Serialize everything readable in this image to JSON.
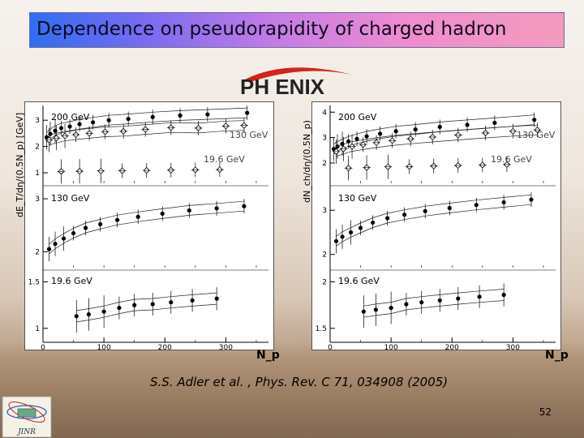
{
  "title": "Dependence on pseudorapidity of charged hadron",
  "logo_text": "PH ENIX",
  "citation": "S.S. Adler et al. , Phys. Rev. C 71, 034908 (2005)",
  "page_number": "52",
  "institute_logo_text": "JINR",
  "colors": {
    "title_gradient_start": "#2f6df0",
    "title_gradient_end": "#f39bbd",
    "logo_red": "#d8201c"
  },
  "chart_data": [
    {
      "type": "scatter",
      "ylabel": "dE_T/dη/(0.5N_p) [GeV]",
      "xlabel": "N_p",
      "xticks": [
        "0",
        "100",
        "200",
        "300"
      ],
      "xlim": [
        0,
        370
      ],
      "panels": [
        {
          "name": "top",
          "ylim": [
            0.6,
            3.5
          ],
          "yticks": [
            "1",
            "2",
            "3"
          ],
          "series": [
            {
              "name": "200 GeV",
              "marker": "filled-circle",
              "x": [
                6,
                12,
                20,
                30,
                44,
                60,
                82,
                108,
                140,
                180,
                225,
                270,
                335
              ],
              "y": [
                2.35,
                2.48,
                2.6,
                2.7,
                2.76,
                2.85,
                2.92,
                3.0,
                3.05,
                3.12,
                3.18,
                3.22,
                3.28
              ]
            },
            {
              "name": "130 GeV",
              "marker": "open-cross",
              "x": [
                10,
                22,
                36,
                54,
                76,
                102,
                132,
                168,
                210,
                255,
                300,
                330
              ],
              "y": [
                2.25,
                2.32,
                2.4,
                2.45,
                2.5,
                2.56,
                2.58,
                2.65,
                2.72,
                2.7,
                2.78,
                2.8
              ]
            },
            {
              "name": "19.6 GeV",
              "marker": "open-cross",
              "x": [
                30,
                60,
                95,
                130,
                170,
                210,
                250,
                290
              ],
              "y": [
                1.05,
                1.06,
                1.07,
                1.08,
                1.09,
                1.1,
                1.11,
                1.12
              ]
            }
          ]
        },
        {
          "name": "middle",
          "label": "130 GeV",
          "ylim": [
            1.7,
            3.2
          ],
          "yticks": [
            "2",
            "3"
          ],
          "series": [
            {
              "name": "130 GeV",
              "marker": "filled-circle",
              "x": [
                10,
                20,
                34,
                50,
                70,
                94,
                122,
                156,
                196,
                240,
                285,
                330
              ],
              "y": [
                2.05,
                2.15,
                2.25,
                2.35,
                2.45,
                2.52,
                2.6,
                2.66,
                2.72,
                2.78,
                2.82,
                2.86
              ]
            }
          ]
        },
        {
          "name": "bottom",
          "label": "19.6 GeV",
          "ylim": [
            0.85,
            1.6
          ],
          "yticks": [
            "1",
            "1.5"
          ],
          "series": [
            {
              "name": "19.6 GeV",
              "marker": "filled-circle",
              "x": [
                55,
                75,
                100,
                125,
                150,
                180,
                210,
                245,
                285
              ],
              "y": [
                1.13,
                1.15,
                1.18,
                1.22,
                1.25,
                1.26,
                1.28,
                1.3,
                1.32
              ]
            }
          ]
        }
      ]
    },
    {
      "type": "scatter",
      "ylabel": "dN_ch/dη/(0.5N_p)",
      "xlabel": "N_p",
      "xticks": [
        "0",
        "100",
        "200",
        "300"
      ],
      "xlim": [
        0,
        370
      ],
      "panels": [
        {
          "name": "top",
          "ylim": [
            1.2,
            4.2
          ],
          "yticks": [
            "2",
            "3",
            "4"
          ],
          "series": [
            {
              "name": "200 GeV",
              "marker": "filled-circle",
              "x": [
                6,
                12,
                20,
                30,
                44,
                60,
                82,
                108,
                140,
                180,
                225,
                270,
                335
              ],
              "y": [
                2.55,
                2.65,
                2.75,
                2.85,
                2.95,
                3.05,
                3.15,
                3.25,
                3.32,
                3.42,
                3.5,
                3.58,
                3.7
              ]
            },
            {
              "name": "130 GeV",
              "marker": "open-cross",
              "x": [
                10,
                22,
                36,
                54,
                76,
                102,
                132,
                168,
                210,
                255,
                300,
                340
              ],
              "y": [
                2.45,
                2.55,
                2.65,
                2.72,
                2.8,
                2.88,
                2.95,
                3.02,
                3.1,
                3.18,
                3.25,
                3.3
              ]
            },
            {
              "name": "19.6 GeV",
              "marker": "open-cross",
              "x": [
                30,
                60,
                95,
                130,
                170,
                210,
                250,
                290
              ],
              "y": [
                1.8,
                1.82,
                1.85,
                1.86,
                1.88,
                1.9,
                1.92,
                1.94
              ]
            }
          ]
        },
        {
          "name": "middle",
          "label": "130 GeV",
          "ylim": [
            1.7,
            3.5
          ],
          "yticks": [
            "2",
            "3"
          ],
          "series": [
            {
              "name": "130 GeV",
              "marker": "filled-circle",
              "x": [
                10,
                20,
                34,
                50,
                70,
                94,
                122,
                156,
                196,
                240,
                285,
                330
              ],
              "y": [
                2.3,
                2.4,
                2.5,
                2.6,
                2.72,
                2.82,
                2.9,
                2.98,
                3.05,
                3.12,
                3.18,
                3.24
              ]
            }
          ]
        },
        {
          "name": "bottom",
          "label": "19.6 GeV",
          "ylim": [
            1.35,
            2.1
          ],
          "yticks": [
            "1.5",
            "2"
          ],
          "series": [
            {
              "name": "19.6 GeV",
              "marker": "filled-circle",
              "x": [
                55,
                75,
                100,
                125,
                150,
                180,
                210,
                245,
                285
              ],
              "y": [
                1.68,
                1.7,
                1.72,
                1.76,
                1.78,
                1.8,
                1.82,
                1.84,
                1.86
              ]
            }
          ]
        }
      ]
    }
  ]
}
